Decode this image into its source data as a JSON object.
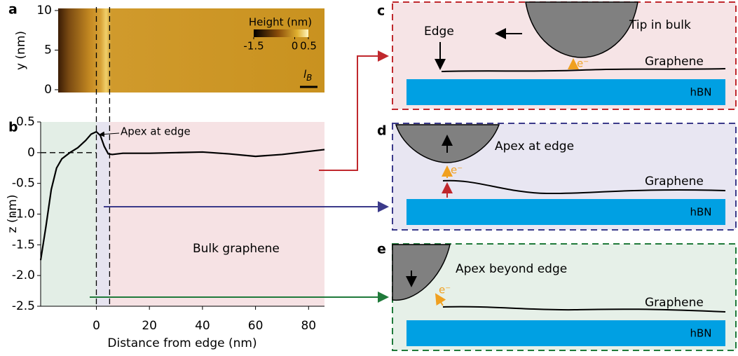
{
  "panel_labels": [
    "a",
    "b",
    "c",
    "d",
    "e"
  ],
  "chart_data": [
    {
      "type": "image",
      "ylabel": "y (nm)",
      "ylim": [
        0,
        10
      ],
      "yticks": [
        0,
        5,
        10
      ],
      "colorbar": {
        "label": "Height (nm)",
        "lim": [
          -1.5,
          0.5
        ],
        "ticks": [
          -1.5,
          0,
          0.5
        ]
      },
      "scale_bar_label": {
        "base": "l",
        "sub": "B"
      }
    },
    {
      "type": "line",
      "xlabel": "Distance from edge (nm)",
      "ylabel": "z (nm)",
      "xlim": [
        -21,
        86
      ],
      "xticks": [
        0,
        20,
        40,
        60,
        80
      ],
      "ylim": [
        -2.5,
        0.5
      ],
      "yticks": [
        0.5,
        0,
        -0.5,
        {
          "value": -1,
          "label": "-1.0"
        },
        -1.5,
        {
          "value": -2,
          "label": "-2.0"
        },
        -2.5
      ],
      "regions": [
        {
          "x": [
            -21,
            0
          ],
          "color": "#e3eee6"
        },
        {
          "x": [
            0,
            5
          ],
          "color": "#e6e4f0"
        },
        {
          "x": [
            5,
            86
          ],
          "color": "#f6e2e4"
        }
      ],
      "series": [
        {
          "color": "#000000",
          "x": [
            -21,
            -19,
            -17,
            -15,
            -13,
            -10,
            -7,
            -4,
            -2,
            0,
            1.5,
            3,
            4.5,
            6,
            10,
            20,
            30,
            40,
            50,
            60,
            70,
            80,
            86
          ],
          "values": [
            -1.75,
            -1.2,
            -0.6,
            -0.25,
            -0.1,
            0.0,
            0.08,
            0.2,
            0.3,
            0.34,
            0.28,
            0.1,
            -0.02,
            -0.03,
            -0.01,
            -0.01,
            0.0,
            0.01,
            -0.02,
            -0.06,
            -0.03,
            0.02,
            0.05
          ]
        }
      ],
      "annotations": [
        "Apex at edge",
        "Bulk graphene"
      ]
    }
  ],
  "diagrams": [
    {
      "tip": "Tip in bulk",
      "edge": "Edge",
      "electron": "e⁻",
      "layer": "Graphene",
      "substrate": "hBN"
    },
    {
      "tip": "Apex at edge",
      "electron": "e⁻",
      "layer": "Graphene",
      "substrate": "hBN"
    },
    {
      "tip": "Apex beyond edge",
      "electron": "e⁻",
      "layer": "Graphene",
      "substrate": "hBN"
    }
  ]
}
